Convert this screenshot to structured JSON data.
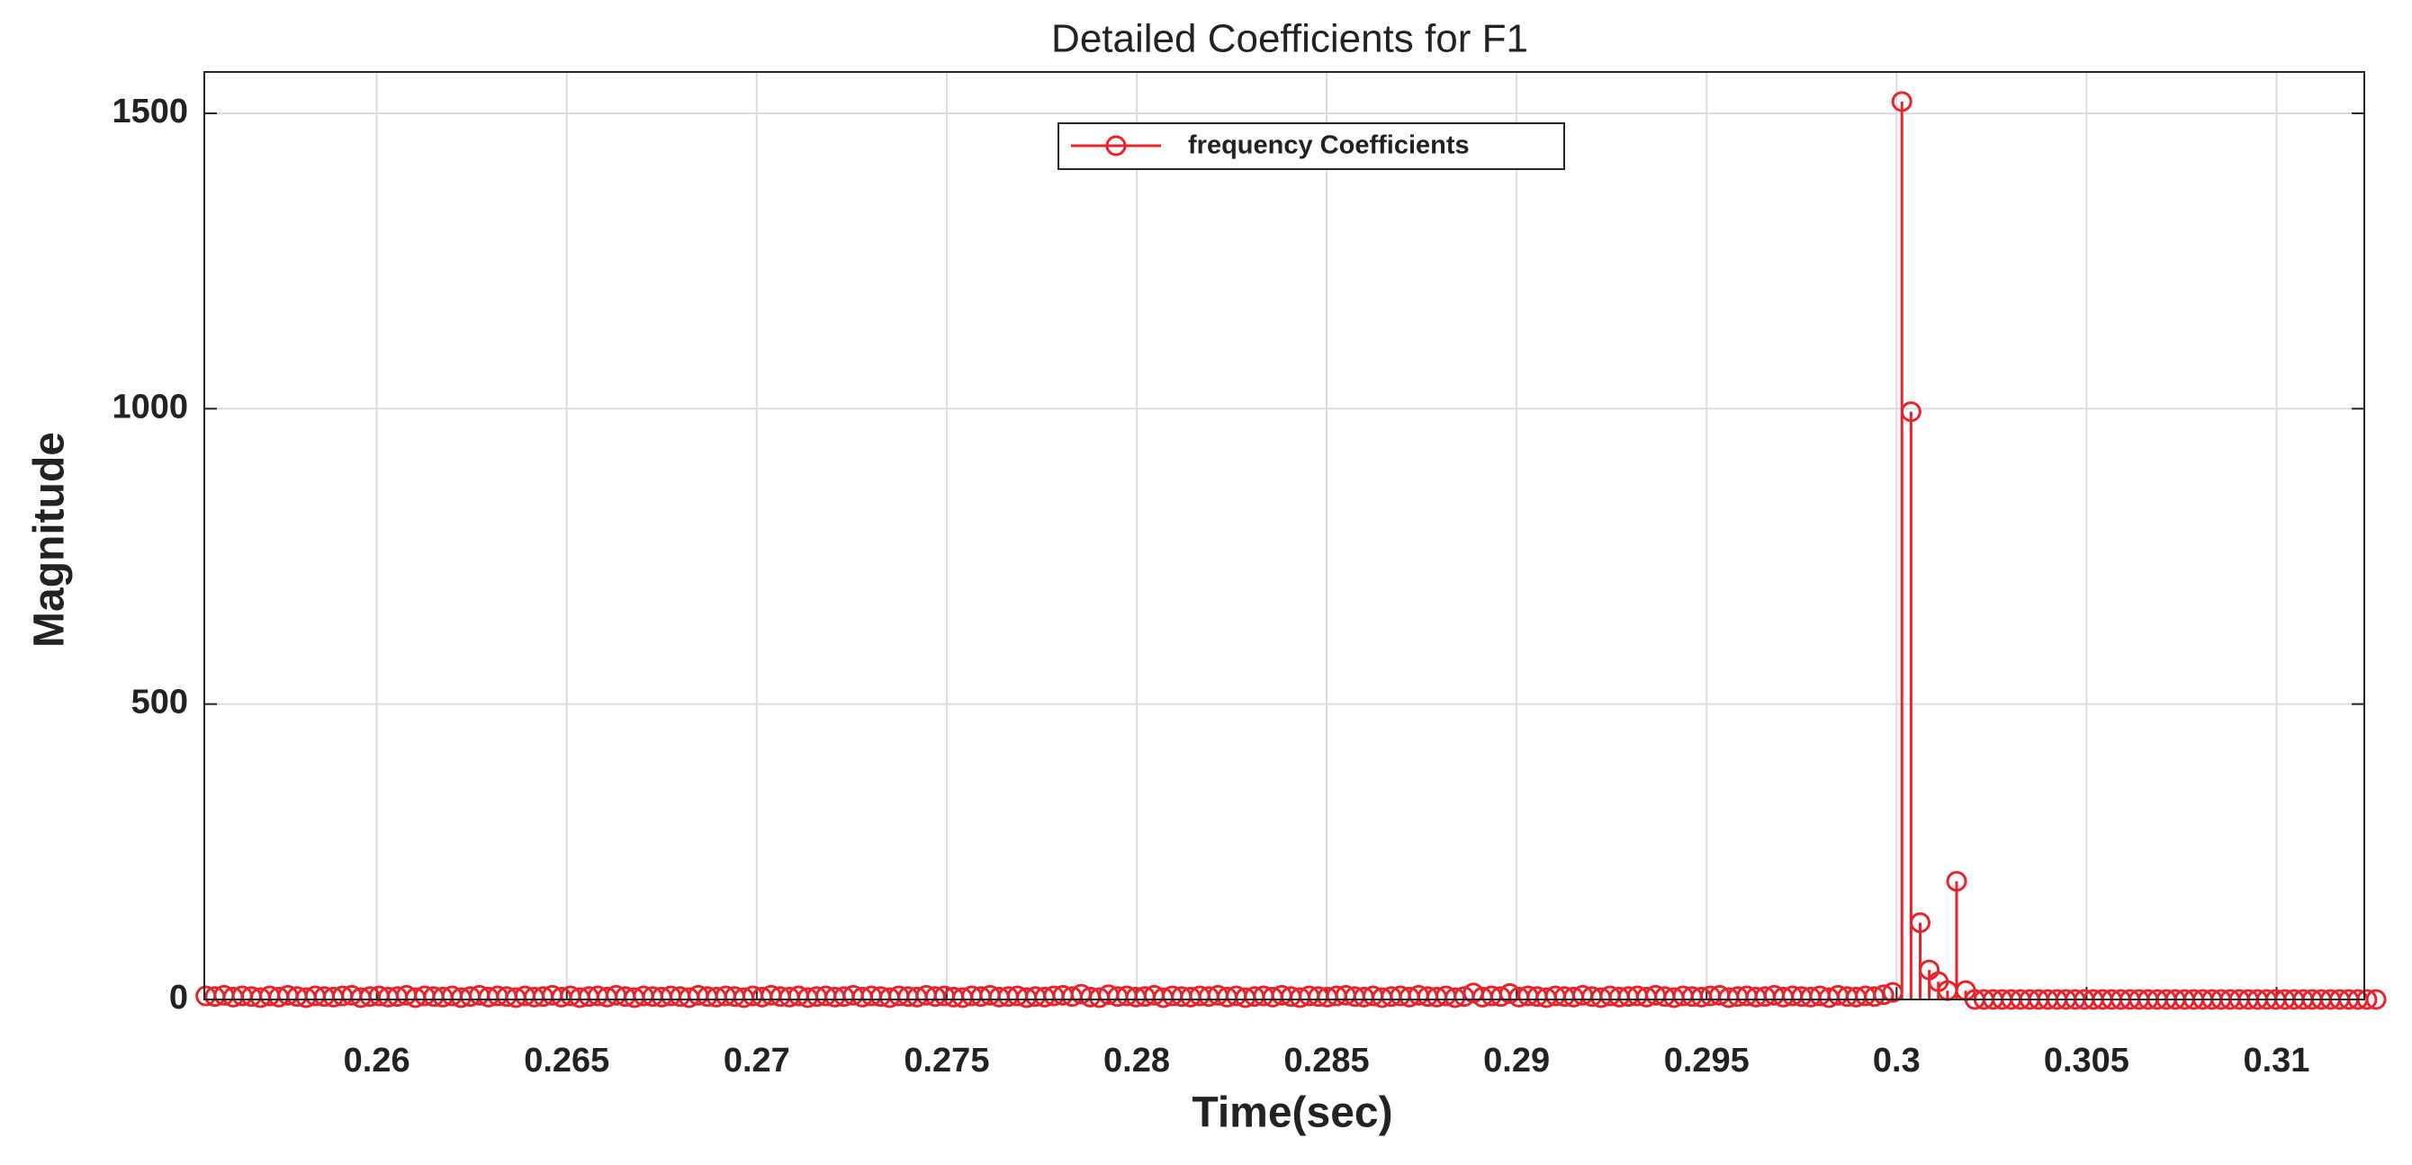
{
  "chart_data": {
    "type": "stem",
    "title": "Detailed Coefficients for F1",
    "xlabel": "Time(sec)",
    "ylabel": "Magnitude",
    "x": [
      0.2555,
      0.25574,
      0.25598,
      0.25622,
      0.25646,
      0.2567,
      0.25694,
      0.25718,
      0.25742,
      0.25766,
      0.2579,
      0.25814,
      0.25838,
      0.25862,
      0.25886,
      0.2591,
      0.25934,
      0.25958,
      0.25982,
      0.26006,
      0.2603,
      0.26054,
      0.26078,
      0.26102,
      0.26126,
      0.2615,
      0.26174,
      0.26198,
      0.26222,
      0.26246,
      0.2627,
      0.26294,
      0.26318,
      0.26342,
      0.26366,
      0.2639,
      0.26414,
      0.26438,
      0.26462,
      0.26486,
      0.2651,
      0.26534,
      0.26558,
      0.26582,
      0.26606,
      0.2663,
      0.26654,
      0.26678,
      0.26702,
      0.26726,
      0.2675,
      0.26774,
      0.26798,
      0.26822,
      0.26846,
      0.2687,
      0.26894,
      0.26918,
      0.26942,
      0.26966,
      0.2699,
      0.27014,
      0.27038,
      0.27062,
      0.27086,
      0.2711,
      0.27134,
      0.27158,
      0.27182,
      0.27206,
      0.2723,
      0.27254,
      0.27278,
      0.27302,
      0.27326,
      0.2735,
      0.27374,
      0.27398,
      0.27422,
      0.27446,
      0.2747,
      0.27494,
      0.27518,
      0.27542,
      0.27566,
      0.2759,
      0.27614,
      0.27638,
      0.27662,
      0.27686,
      0.2771,
      0.27734,
      0.27758,
      0.27782,
      0.27806,
      0.2783,
      0.27854,
      0.27878,
      0.27902,
      0.27926,
      0.2795,
      0.27974,
      0.27998,
      0.28022,
      0.28046,
      0.2807,
      0.28094,
      0.28118,
      0.28142,
      0.28166,
      0.2819,
      0.28214,
      0.28238,
      0.28262,
      0.28286,
      0.2831,
      0.28334,
      0.28358,
      0.28382,
      0.28406,
      0.2843,
      0.28454,
      0.28478,
      0.28502,
      0.28526,
      0.2855,
      0.28574,
      0.28598,
      0.28622,
      0.28646,
      0.2867,
      0.28694,
      0.28718,
      0.28742,
      0.28766,
      0.2879,
      0.28814,
      0.28838,
      0.28862,
      0.28886,
      0.2891,
      0.28934,
      0.28958,
      0.28982,
      0.29006,
      0.2903,
      0.29054,
      0.29078,
      0.29102,
      0.29126,
      0.2915,
      0.29174,
      0.29198,
      0.29222,
      0.29246,
      0.2927,
      0.29294,
      0.29318,
      0.29342,
      0.29366,
      0.2939,
      0.29414,
      0.29438,
      0.29462,
      0.29486,
      0.2951,
      0.29534,
      0.29558,
      0.29582,
      0.29606,
      0.2963,
      0.29654,
      0.29678,
      0.29702,
      0.29726,
      0.2975,
      0.29774,
      0.29798,
      0.29822,
      0.29846,
      0.2987,
      0.29894,
      0.29918,
      0.29942,
      0.29966,
      0.2999,
      0.30014,
      0.30038,
      0.30062,
      0.30086,
      0.3011,
      0.30134,
      0.30158,
      0.30182,
      0.30206,
      0.3023,
      0.30254,
      0.30278,
      0.30302,
      0.30326,
      0.3035,
      0.30374,
      0.30398,
      0.30422,
      0.30446,
      0.3047,
      0.30494,
      0.30518,
      0.30542,
      0.30566,
      0.3059,
      0.30614,
      0.30638,
      0.30662,
      0.30686,
      0.3071,
      0.30734,
      0.30758,
      0.30782,
      0.30806,
      0.3083,
      0.30854,
      0.30878,
      0.30902,
      0.30926,
      0.3095,
      0.30974,
      0.30998,
      0.31022,
      0.31046,
      0.3107,
      0.31094,
      0.31118,
      0.31142,
      0.31166,
      0.3119,
      0.31214,
      0.31238,
      0.31262
    ],
    "series": [
      {
        "name": "frequency Coefficients",
        "color": "#e8232b",
        "values": [
          6,
          5,
          7,
          4,
          6,
          5,
          3,
          6,
          4,
          7,
          5,
          3,
          6,
          5,
          4,
          6,
          7,
          3,
          5,
          6,
          4,
          5,
          7,
          3,
          6,
          5,
          4,
          6,
          3,
          5,
          7,
          4,
          6,
          5,
          3,
          6,
          4,
          5,
          7,
          4,
          6,
          3,
          5,
          6,
          4,
          7,
          5,
          3,
          6,
          5,
          4,
          6,
          5,
          3,
          7,
          5,
          4,
          6,
          5,
          3,
          6,
          4,
          7,
          5,
          4,
          6,
          3,
          5,
          6,
          4,
          5,
          7,
          4,
          6,
          5,
          3,
          6,
          5,
          4,
          7,
          5,
          6,
          4,
          3,
          6,
          5,
          7,
          4,
          5,
          6,
          3,
          5,
          4,
          6,
          7,
          5,
          9,
          4,
          3,
          8,
          5,
          6,
          4,
          5,
          7,
          3,
          6,
          5,
          4,
          6,
          5,
          7,
          4,
          6,
          3,
          5,
          6,
          4,
          7,
          5,
          3,
          6,
          5,
          4,
          6,
          7,
          5,
          4,
          6,
          3,
          5,
          6,
          4,
          7,
          5,
          4,
          6,
          3,
          5,
          11,
          4,
          6,
          5,
          10,
          4,
          6,
          5,
          3,
          6,
          5,
          4,
          7,
          5,
          3,
          6,
          4,
          5,
          6,
          4,
          7,
          5,
          3,
          6,
          5,
          4,
          6,
          7,
          3,
          5,
          6,
          4,
          5,
          7,
          4,
          6,
          5,
          4,
          6,
          3,
          7,
          5,
          4,
          6,
          5,
          8,
          12,
          1520,
          995,
          130,
          50,
          30,
          15,
          200,
          15,
          0,
          0,
          0,
          0,
          0,
          0,
          0,
          0,
          0,
          0,
          0,
          0,
          0,
          0,
          0,
          0,
          0,
          0,
          0,
          0,
          0,
          0,
          0,
          0,
          0,
          0,
          0,
          0,
          0,
          0,
          0,
          0,
          0,
          0,
          0,
          0,
          0,
          0,
          0,
          0,
          0,
          0,
          0,
          0,
          0
        ]
      }
    ],
    "xlim": [
      0.25546,
      0.31231
    ],
    "ylim": [
      0,
      1570
    ],
    "xticks": [
      0.26,
      0.265,
      0.27,
      0.275,
      0.28,
      0.285,
      0.29,
      0.295,
      0.3,
      0.305,
      0.31
    ],
    "yticks": [
      0,
      500,
      1000,
      1500
    ],
    "grid": true
  }
}
